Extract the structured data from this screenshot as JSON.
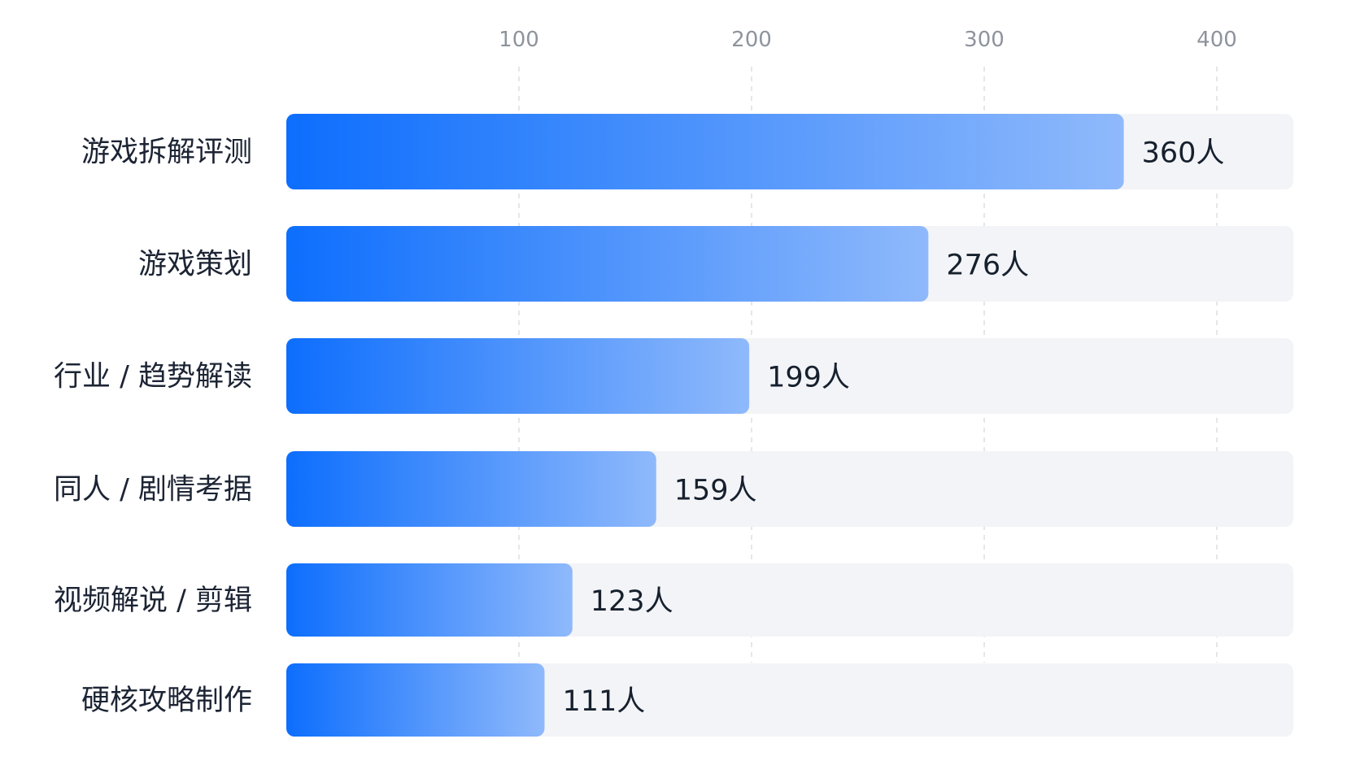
{
  "chart_data": {
    "type": "bar",
    "orientation": "horizontal",
    "title": "",
    "xlabel": "",
    "ylabel": "",
    "categories": [
      "游戏拆解评测",
      "游戏策划",
      "行业 / 趋势解读",
      "同人 / 剧情考据",
      "视频解说 / 剪辑",
      "硬核攻略制作"
    ],
    "values": [
      360,
      276,
      199,
      159,
      123,
      111
    ],
    "value_labels": [
      "360人",
      "276人",
      "199人",
      "159人",
      "123人",
      "111人"
    ],
    "value_unit": "人",
    "xticks": [
      "100",
      "200",
      "300",
      "400"
    ],
    "xtick_values": [
      100,
      200,
      300,
      400
    ],
    "xlim": [
      0,
      433
    ],
    "axis_position": "top",
    "grid": true,
    "legend": "none",
    "colors": {
      "bar_start": "#0d6efd",
      "bar_end": "#8fb9fb",
      "track": "#f3f4f7",
      "grid": "#dcdfe4",
      "tick_text": "#8e949d",
      "label_text": "#1c2434"
    }
  }
}
